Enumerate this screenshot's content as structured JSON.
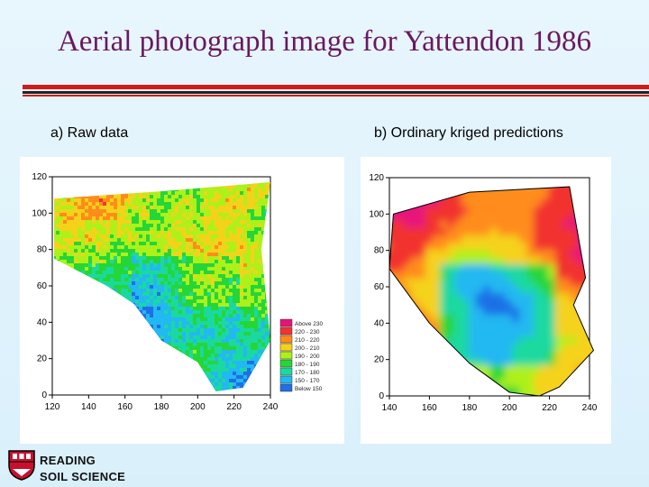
{
  "title": "Aerial photograph image for Yattendon 1986",
  "captions": {
    "a": "a) Raw data",
    "b": "b) Ordinary kriged predictions"
  },
  "colors": {
    "title": "#6a1860",
    "rule_red": "#d11b1b",
    "rule_black": "#222222"
  },
  "palette": [
    "#e8127a",
    "#f2332f",
    "#ff8c1a",
    "#f5d21a",
    "#aef01a",
    "#25d637",
    "#1ad9a0",
    "#22b8f2",
    "#1f6fe6"
  ],
  "chart_data": [
    {
      "type": "heatmap",
      "title": "a) Raw data",
      "x_ticks": [
        "120",
        "140",
        "160",
        "180",
        "200",
        "220",
        "240"
      ],
      "y_ticks": [
        "0",
        "20",
        "40",
        "60",
        "80",
        "100",
        "120"
      ],
      "xlim": [
        120,
        240
      ],
      "ylim": [
        0,
        120
      ],
      "legend": {
        "placement": "right",
        "labels": [
          "Above 230",
          "220 - 230",
          "210 - 220",
          "200 - 210",
          "190 - 200",
          "180 - 190",
          "170 - 180",
          "150 - 170",
          "Below 150"
        ]
      }
    },
    {
      "type": "heatmap",
      "title": "b) Ordinary kriged predictions",
      "x_ticks": [
        "140",
        "160",
        "180",
        "200",
        "220",
        "240"
      ],
      "y_ticks": [
        "0",
        "20",
        "40",
        "60",
        "80",
        "100",
        "120"
      ],
      "xlim": [
        140,
        240
      ],
      "ylim": [
        0,
        120
      ]
    }
  ],
  "logo": {
    "line1": "READING",
    "line2": "SOIL SCIENCE"
  }
}
